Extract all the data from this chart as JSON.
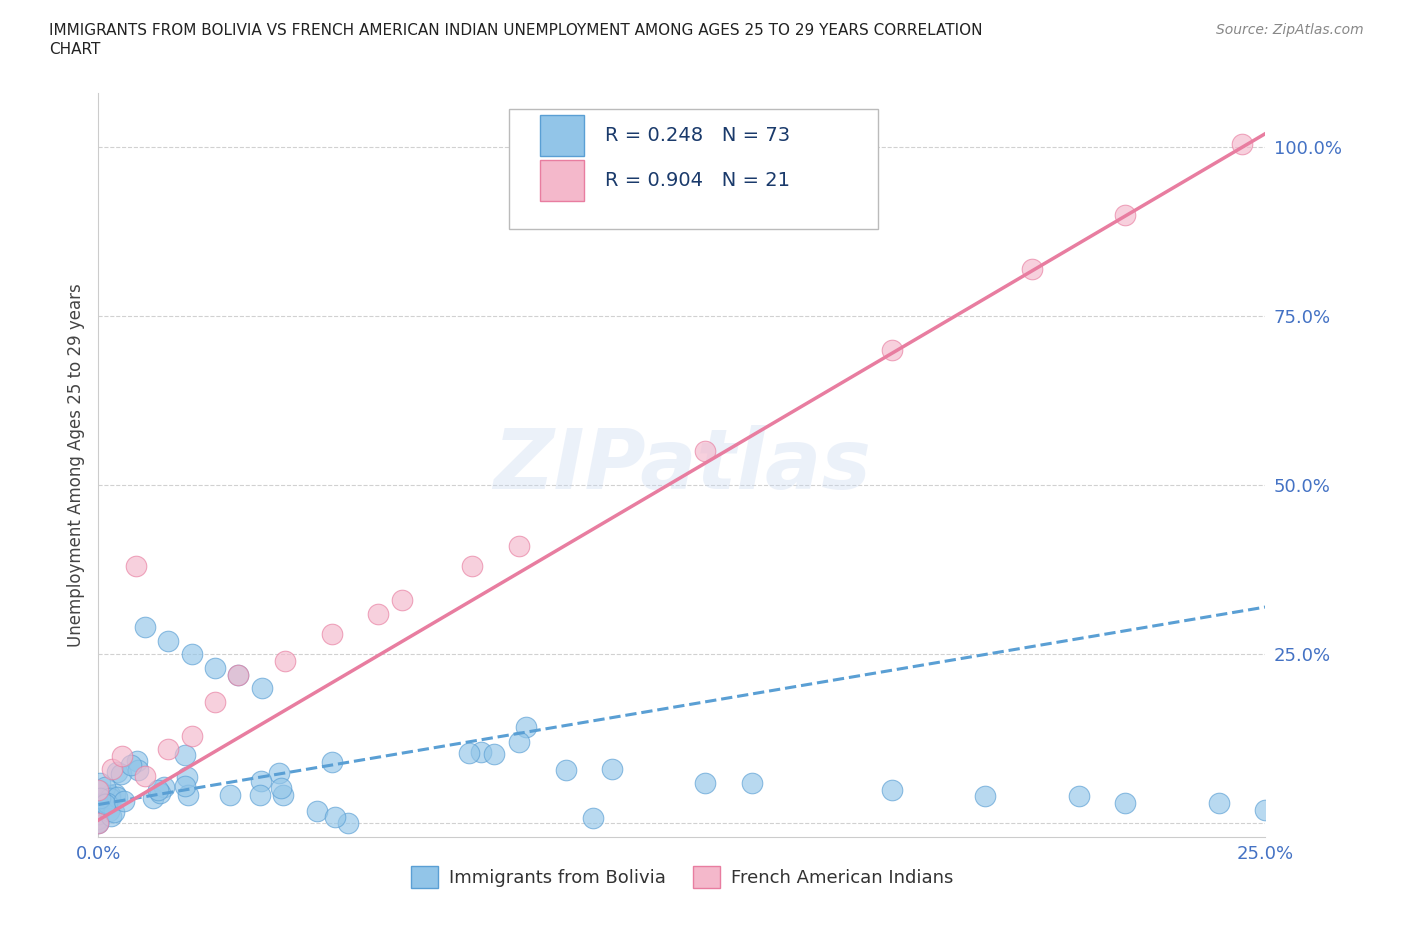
{
  "title_line1": "IMMIGRANTS FROM BOLIVIA VS FRENCH AMERICAN INDIAN UNEMPLOYMENT AMONG AGES 25 TO 29 YEARS CORRELATION",
  "title_line2": "CHART",
  "source": "Source: ZipAtlas.com",
  "ylabel": "Unemployment Among Ages 25 to 29 years",
  "xlim": [
    0.0,
    0.25
  ],
  "ylim": [
    -0.02,
    1.08
  ],
  "watermark": "ZIPatlas",
  "legend_r1": "R = 0.248   N = 73",
  "legend_r2": "R = 0.904   N = 21",
  "bolivia_color": "#92c5e8",
  "bolivia_color_edge": "#5a9fd4",
  "french_color": "#f4b8cb",
  "french_color_edge": "#e87da0",
  "bolivia_line_color": "#5a9fd4",
  "french_line_color": "#e87da0",
  "bolivia_line": {
    "x0": 0.0,
    "x1": 0.25,
    "y0": 0.028,
    "y1": 0.32
  },
  "french_line": {
    "x0": 0.0,
    "x1": 0.25,
    "y0": 0.005,
    "y1": 1.02
  }
}
